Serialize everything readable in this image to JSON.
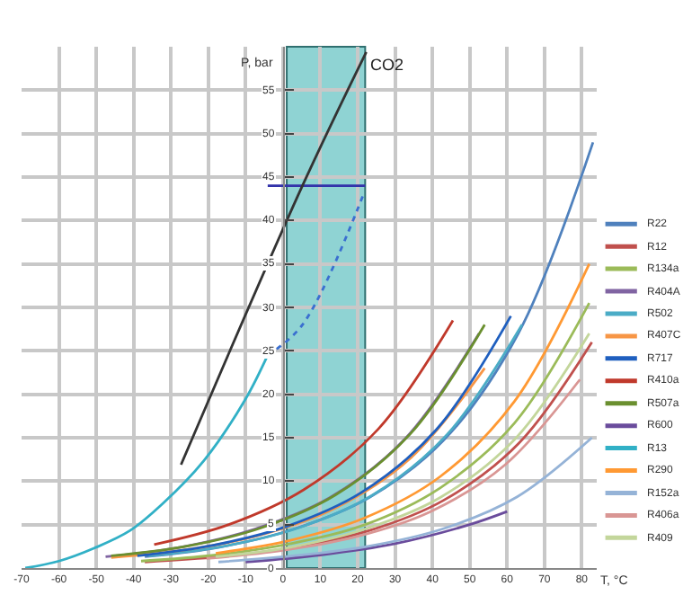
{
  "chart_data": {
    "type": "line",
    "xlabel": "T, °C",
    "ylabel": "P, bar",
    "xlim": [
      -70,
      84
    ],
    "xticks": [
      -70,
      -60,
      -50,
      -40,
      -30,
      -20,
      -10,
      0,
      10,
      20,
      30,
      40,
      50,
      60,
      70,
      80
    ],
    "ylim": [
      0,
      60
    ],
    "yticks": [
      0,
      5,
      10,
      15,
      20,
      25,
      30,
      35,
      40,
      45,
      50,
      55
    ],
    "grid": true,
    "legend": "right",
    "marker": "none",
    "line_style": "solid",
    "bands": [
      {
        "axis": "x",
        "from": 1,
        "to": 22,
        "color": "#8fd3d3"
      }
    ],
    "annotations": [
      {
        "text": "CO2",
        "x": 22.3,
        "y": 59.4
      }
    ],
    "series": [
      {
        "name": "R22",
        "color": "#4f81bd",
        "x": [
          -37,
          -17,
          3,
          23,
          43,
          63,
          83
        ],
        "values": [
          1.3,
          2.4,
          4.5,
          8.1,
          14.7,
          27,
          49
        ]
      },
      {
        "name": "R12",
        "color": "#c0504d",
        "x": [
          -37,
          -17,
          3,
          23,
          43,
          63,
          82.7
        ],
        "values": [
          0.7,
          1.3,
          2.4,
          4.3,
          7.8,
          14.3,
          26
        ]
      },
      {
        "name": "R134a",
        "color": "#9bbb59",
        "x": [
          -38,
          -18,
          2,
          22,
          42,
          62,
          82
        ],
        "values": [
          0.8,
          1.5,
          2.8,
          5,
          9.2,
          16.7,
          30.5
        ]
      },
      {
        "name": "R404A",
        "color": "#8064a2",
        "x": [
          -47.5,
          -27.5,
          -7.5,
          12.5,
          32.5,
          52.5
        ],
        "values": [
          1.3,
          2.4,
          4.5,
          8.1,
          14.8,
          27
        ]
      },
      {
        "name": "R502",
        "color": "#4bacc6",
        "x": [
          -36,
          -16,
          4,
          24,
          44,
          64
        ],
        "values": [
          1.4,
          2.5,
          4.6,
          8.4,
          15.4,
          28
        ]
      },
      {
        "name": "R407C",
        "color": "#f79646",
        "x": [
          -46,
          -26,
          -6,
          14,
          34,
          54
        ],
        "values": [
          1.2,
          2.1,
          3.8,
          6.9,
          12.6,
          23
        ]
      },
      {
        "name": "R717",
        "color": "#1f5fbf",
        "x": [
          -39,
          -19,
          1,
          21,
          41,
          61
        ],
        "values": [
          1.4,
          2.6,
          4.8,
          8.7,
          15.9,
          29
        ]
      },
      {
        "name": "R410a",
        "color": "#c0392b",
        "x": [
          -34.5,
          -14.5,
          5.5,
          25.5,
          45.5
        ],
        "values": [
          2.7,
          5,
          9,
          16,
          28.5
        ]
      },
      {
        "name": "R507a",
        "color": "#6a8f2f",
        "x": [
          -46,
          -26,
          -6,
          14,
          34,
          54
        ],
        "values": [
          1.4,
          2.5,
          4.6,
          8.4,
          15.4,
          28
        ]
      },
      {
        "name": "R600",
        "color": "#6a4c9c",
        "x": [
          -10,
          10,
          30,
          50,
          60
        ],
        "values": [
          0.7,
          1.5,
          2.8,
          5,
          6.5
        ]
      },
      {
        "name": "R13",
        "color": "#31b0c6",
        "x": [
          -69,
          -60,
          -50.5,
          -41,
          -32,
          -21.3,
          -10.1,
          -4.1
        ],
        "values": [
          0,
          0.8,
          2.3,
          4.3,
          7.5,
          12.3,
          19.4,
          24.5
        ]
      },
      {
        "name": "R290",
        "color": "#ff9933",
        "x": [
          -18,
          2,
          22,
          42,
          62,
          82
        ],
        "values": [
          1.7,
          3.2,
          5.8,
          10.5,
          19.2,
          35
        ]
      },
      {
        "name": "R152a",
        "color": "#95b3d7",
        "x": [
          -17.3,
          2.7,
          22.7,
          42.7,
          62.7,
          82.7
        ],
        "values": [
          0.7,
          1.4,
          2.5,
          4.5,
          8.2,
          15
        ]
      },
      {
        "name": "R406a",
        "color": "#d99694",
        "x": [
          -20.5,
          -0.5,
          19.5,
          39.5,
          59.5,
          79.5
        ],
        "values": [
          1.1,
          2,
          3.6,
          6.5,
          11.9,
          21.7
        ]
      },
      {
        "name": "R409",
        "color": "#c3d69b",
        "x": [
          -18,
          2,
          22,
          42,
          62,
          82
        ],
        "values": [
          1.3,
          2.4,
          4.5,
          8.1,
          14.8,
          27
        ]
      },
      {
        "color": "#3a6fd0",
        "line_style": "dotted",
        "x": [
          -4.1,
          5.2,
          21.9
        ],
        "values": [
          24.5,
          28,
          43.4
        ]
      },
      {
        "color": "#3333aa",
        "x": [
          -4.1,
          22
        ],
        "values": [
          44,
          44
        ]
      },
      {
        "color": "#333333",
        "x": [
          -27.3,
          5.2,
          22.3
        ],
        "values": [
          11.9,
          44,
          59.4
        ]
      }
    ]
  }
}
